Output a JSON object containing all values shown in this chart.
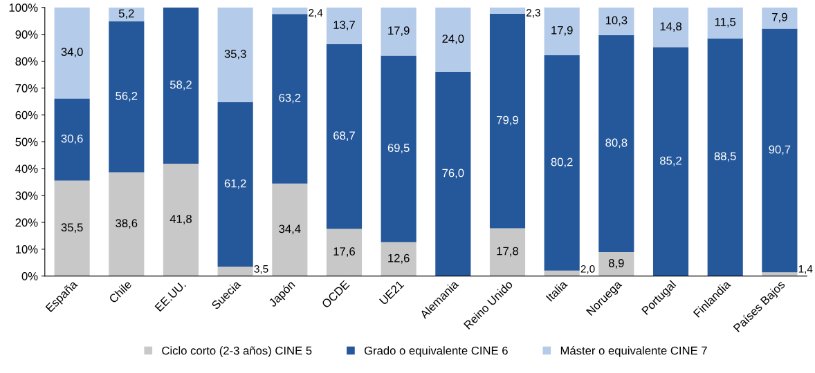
{
  "chart_data": {
    "type": "bar",
    "stacked": true,
    "categories": [
      "España",
      "Chile",
      "EE.UU.",
      "Suecia",
      "Japón",
      "OCDE",
      "UE21",
      "Alemania",
      "Reino Unido",
      "Italia",
      "Noruega",
      "Portugal",
      "Finlandia",
      "Países Bajos"
    ],
    "series": [
      {
        "name": "Ciclo corto (2-3 años) CINE 5",
        "color": "#c8c8c8",
        "values": [
          35.5,
          38.6,
          41.8,
          3.5,
          34.4,
          17.6,
          12.6,
          null,
          17.8,
          2.0,
          8.9,
          null,
          null,
          1.4
        ],
        "value_labels": [
          "35,5",
          "38,6",
          "41,8",
          "3,5",
          "34,4",
          "17,6",
          "12,6",
          null,
          "17,8",
          "2,0",
          "8,9",
          null,
          null,
          "1,4"
        ]
      },
      {
        "name": "Grado o equivalente CINE 6",
        "color": "#25589a",
        "values": [
          30.6,
          56.2,
          58.2,
          61.2,
          63.2,
          68.7,
          69.5,
          76.0,
          79.9,
          80.2,
          80.8,
          85.2,
          88.5,
          90.7
        ],
        "value_labels": [
          "30,6",
          "56,2",
          "58,2",
          "61,2",
          "63,2",
          "68,7",
          "69,5",
          "76,0",
          "79,9",
          "80,2",
          "80,8",
          "85,2",
          "88,5",
          "90,7"
        ]
      },
      {
        "name": "Máster o equivalente CINE 7",
        "color": "#b4cbea",
        "values": [
          34.0,
          5.2,
          null,
          35.3,
          2.4,
          13.7,
          17.9,
          24.0,
          2.3,
          17.9,
          10.3,
          14.8,
          11.5,
          7.9
        ],
        "value_labels": [
          "34,0",
          "5,2",
          null,
          "35,3",
          "2,4",
          "13,7",
          "17,9",
          "24,0",
          "2,3",
          "17,9",
          "10,3",
          "14,8",
          "11,5",
          "7,9"
        ]
      }
    ],
    "ylim": [
      0,
      100
    ],
    "yticks": [
      {
        "value": 0,
        "label": "0%"
      },
      {
        "value": 10,
        "label": "10%"
      },
      {
        "value": 20,
        "label": "20%"
      },
      {
        "value": 30,
        "label": "30%"
      },
      {
        "value": 40,
        "label": "40%"
      },
      {
        "value": 50,
        "label": "50%"
      },
      {
        "value": 60,
        "label": "60%"
      },
      {
        "value": 70,
        "label": "70%"
      },
      {
        "value": 80,
        "label": "80%"
      },
      {
        "value": 90,
        "label": "90%"
      },
      {
        "value": 100,
        "label": "100%"
      }
    ],
    "legend": "bottom"
  }
}
